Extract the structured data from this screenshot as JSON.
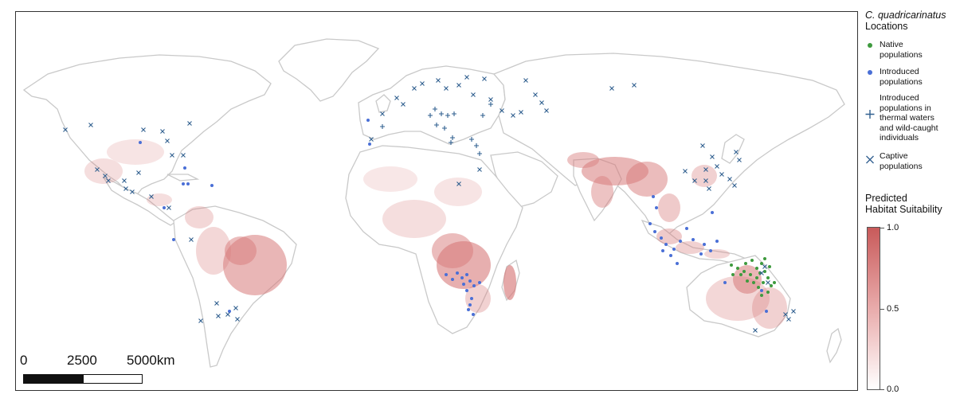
{
  "legend": {
    "species_title": "C. quadricarinatus",
    "locations_title": "Locations",
    "items": [
      {
        "label": "Native\npopulations",
        "symbol": "dot",
        "color": "#3e9a3e"
      },
      {
        "label": "Introduced\npopulations",
        "symbol": "dot",
        "color": "#4a6fd6"
      },
      {
        "label": "Introduced\npopulations in\nthermal waters\nand wild-caught\nindividuals",
        "symbol": "plus",
        "color": "#2f5f8f"
      },
      {
        "label": "Captive\npopulations",
        "symbol": "cross",
        "color": "#2f5f8f"
      }
    ],
    "suitability_title": "Predicted\nHabitat Suitability",
    "colorbar": {
      "max_label": "1.0",
      "mid_label": "0.5",
      "min_label": "0.0",
      "low_color": "#ffffff",
      "high_color": "#c85a5a"
    }
  },
  "scale_bar": {
    "labels": [
      "0",
      "2500",
      "5000"
    ],
    "unit": "km"
  },
  "colors": {
    "land_outline": "#c9c9c9",
    "frame": "#333333",
    "suitability": "#d77a7a"
  }
}
